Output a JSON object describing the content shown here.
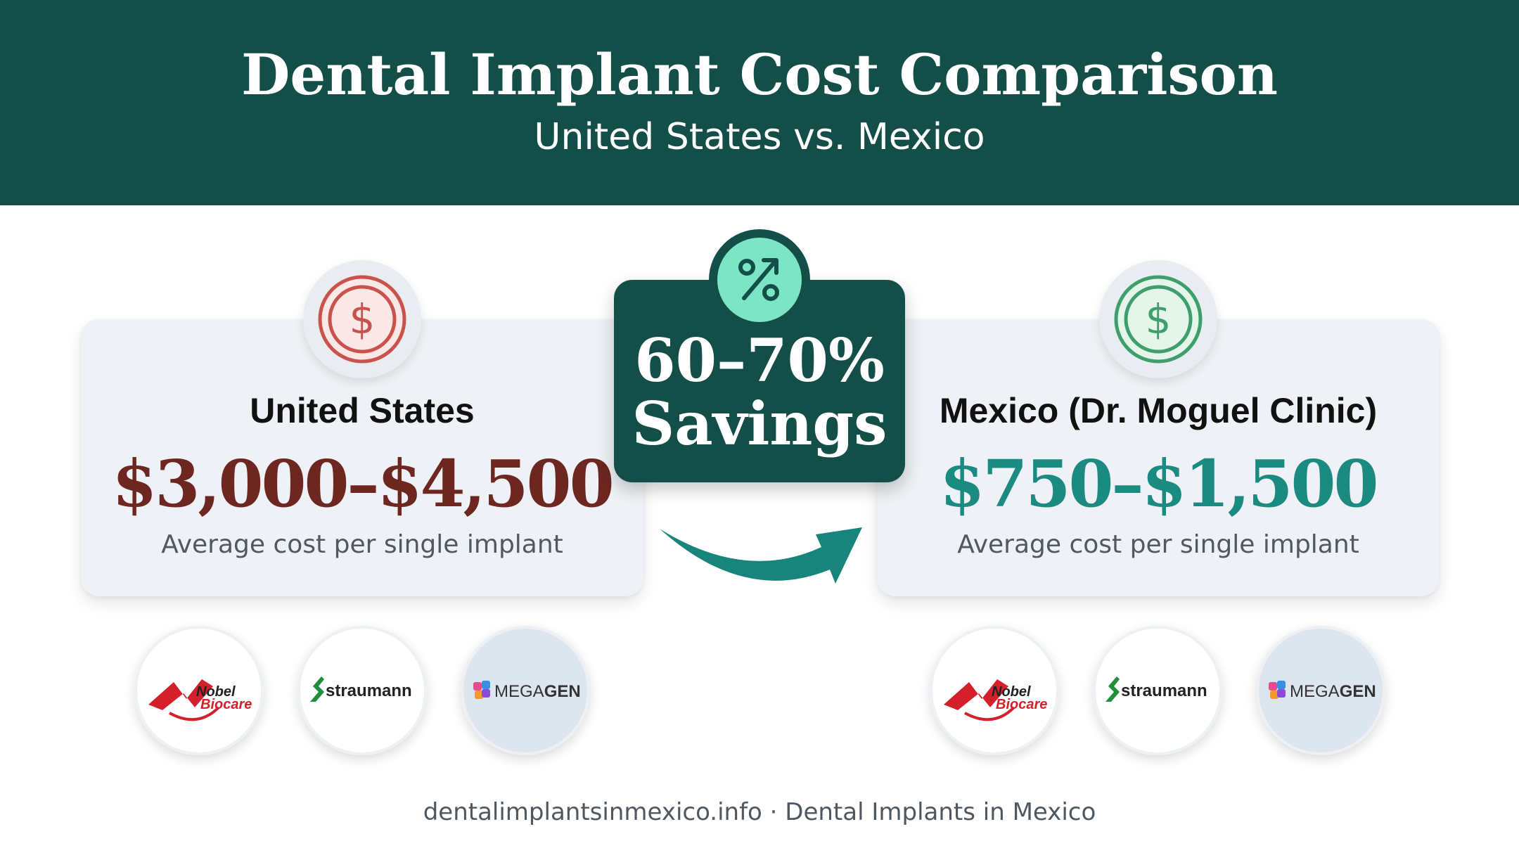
{
  "header": {
    "title": "Dental Implant Cost Comparison",
    "subtitle": "United States vs. Mexico"
  },
  "colors": {
    "header_bg": "#134f48",
    "us_price": "#6d2620",
    "mx_price": "#1b8a80",
    "us_icon": "#c9524c",
    "mx_icon": "#3f9f6c",
    "savings_accent": "#7ce6c4",
    "arrow": "#17857b"
  },
  "us": {
    "country": "United States",
    "price": "$3,000–$4,500",
    "note": "Average cost per single implant",
    "icon": "dollar-coin-icon"
  },
  "mexico": {
    "country": "Mexico (Dr. Moguel Clinic)",
    "price": "$750–$1,500",
    "note": "Average cost per single implant",
    "icon": "dollar-coin-icon"
  },
  "savings": {
    "line1": "60–70%",
    "line2": "Savings",
    "icon": "percent-trend-icon"
  },
  "brands": [
    {
      "name": "Nobel Biocare",
      "line1": "Nobel",
      "line2": "Biocare"
    },
    {
      "name": "straumann"
    },
    {
      "name": "MEGAGEN",
      "part1": "MEGA",
      "part2": "GEN"
    }
  ],
  "footer": "dentalimplantsinmexico.info · Dental Implants in Mexico"
}
